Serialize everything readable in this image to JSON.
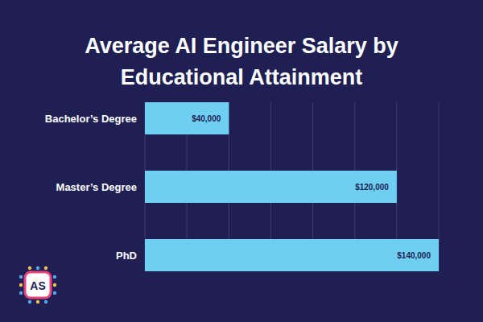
{
  "chart_data": {
    "type": "bar",
    "title": "Average AI Engineer Salary by Educational Attainment",
    "orientation": "horizontal",
    "categories": [
      "Bachelor’s Degree",
      "Master’s Degree",
      "PhD"
    ],
    "values": [
      40000,
      120000,
      140000
    ],
    "value_labels": [
      "$40,000",
      "$120,000",
      "$140,000"
    ],
    "color": "#6ecff3",
    "xlim": [
      0,
      140000
    ],
    "xticks": [
      0,
      20000,
      40000,
      60000,
      80000,
      100000,
      120000,
      140000
    ],
    "grid": true,
    "data_labels": true,
    "tick_labels": "y"
  },
  "logo": {
    "text": "AS"
  }
}
